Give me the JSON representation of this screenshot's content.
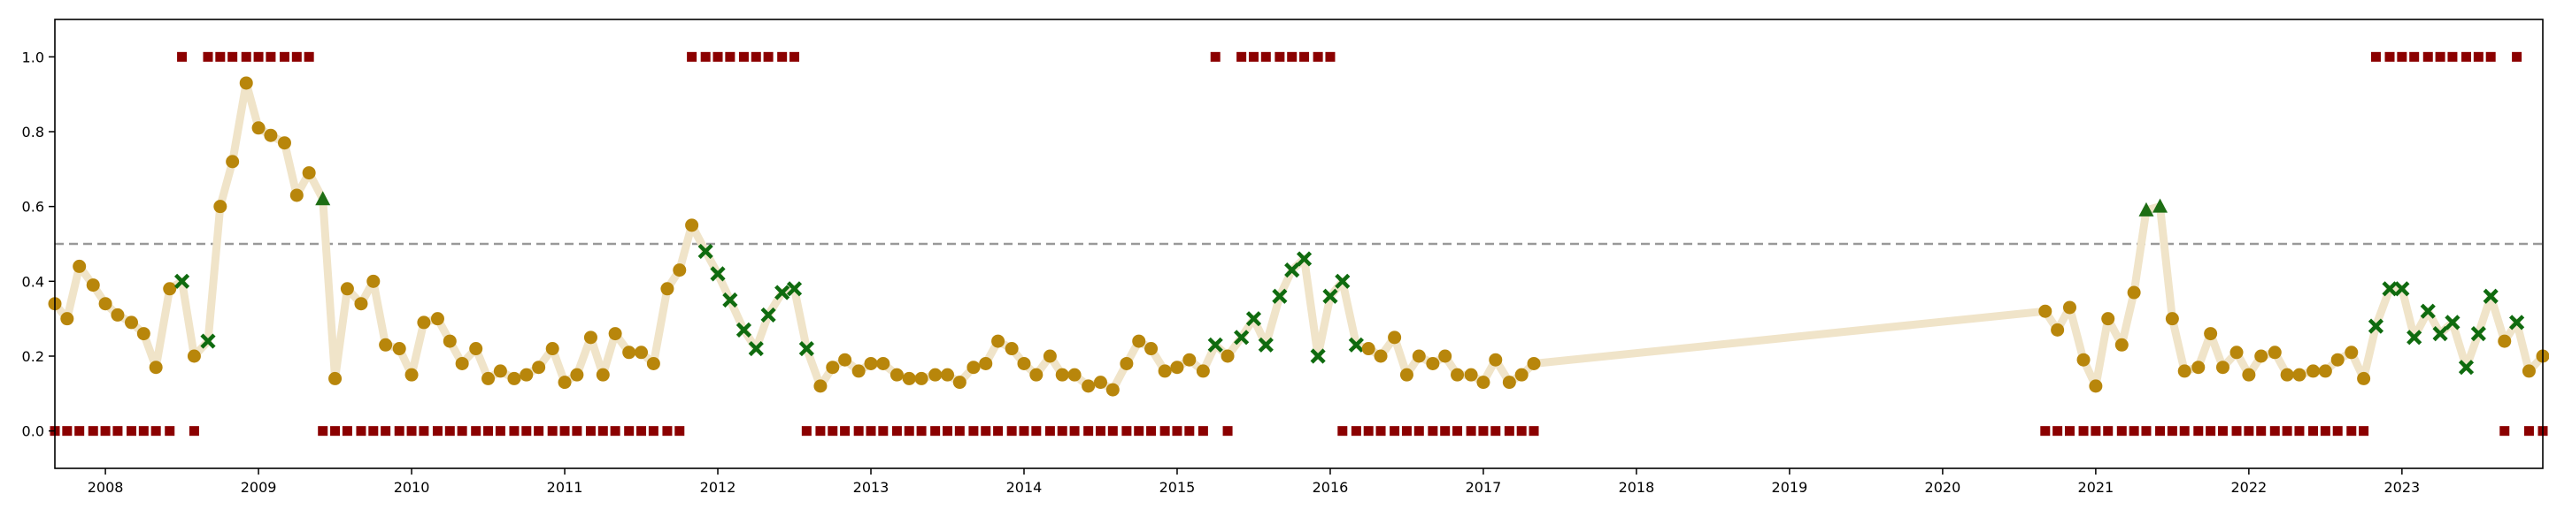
{
  "chart_data": {
    "type": "line",
    "title": "",
    "xlabel": "",
    "ylabel": "",
    "xlim": [
      2007.67,
      2023.92
    ],
    "ylim": [
      -0.1,
      1.1
    ],
    "grid": false,
    "x_ticks": [
      2008,
      2009,
      2010,
      2011,
      2012,
      2013,
      2014,
      2015,
      2016,
      2017,
      2018,
      2019,
      2020,
      2021,
      2022,
      2023
    ],
    "x_tick_labels": [
      "2008",
      "2009",
      "2010",
      "2011",
      "2012",
      "2013",
      "2014",
      "2015",
      "2016",
      "2017",
      "2018",
      "2019",
      "2020",
      "2021",
      "2022",
      "2023"
    ],
    "y_ticks": [
      0.0,
      0.2,
      0.4,
      0.6,
      0.8,
      1.0
    ],
    "y_tick_labels": [
      "0.0",
      "0.2",
      "0.4",
      "0.6",
      "0.8",
      "1.0"
    ],
    "threshold": 0.5,
    "colors": {
      "line": "#f0e4c9",
      "probability_marker": "#b8860b",
      "x_marker": "#0f6b0f",
      "triangle_marker": "#1e6e14",
      "state_marker": "#8b0000",
      "threshold": "#999999"
    },
    "series": [
      {
        "x": [
          2007.67,
          2007.75,
          2007.83,
          2007.92,
          2008.0,
          2008.08,
          2008.17,
          2008.25,
          2008.33,
          2008.42,
          2008.5,
          2008.58,
          2008.67,
          2008.75,
          2008.83,
          2008.92,
          2009.0,
          2009.08,
          2009.17,
          2009.25,
          2009.33,
          2009.42,
          2009.5,
          2009.58,
          2009.67,
          2009.75,
          2009.83,
          2009.92,
          2010.0,
          2010.08,
          2010.17,
          2010.25,
          2010.33,
          2010.42,
          2010.5,
          2010.58,
          2010.67,
          2010.75,
          2010.83,
          2010.92,
          2011.0,
          2011.08,
          2011.17,
          2011.25,
          2011.33,
          2011.42,
          2011.5,
          2011.58,
          2011.67,
          2011.75,
          2011.83,
          2011.92,
          2012.0,
          2012.08,
          2012.17,
          2012.25,
          2012.33,
          2012.42,
          2012.5,
          2012.58,
          2012.67,
          2012.75,
          2012.83,
          2012.92,
          2013.0,
          2013.08,
          2013.17,
          2013.25,
          2013.33,
          2013.42,
          2013.5,
          2013.58,
          2013.67,
          2013.75,
          2013.83,
          2013.92,
          2014.0,
          2014.08,
          2014.17,
          2014.25,
          2014.33,
          2014.42,
          2014.5,
          2014.58,
          2014.67,
          2014.75,
          2014.83,
          2014.92,
          2015.0,
          2015.08,
          2015.17,
          2015.25,
          2015.33,
          2015.42,
          2015.5,
          2015.58,
          2015.67,
          2015.75,
          2015.83,
          2015.92,
          2016.0,
          2016.08,
          2016.17,
          2016.25,
          2016.33,
          2016.42,
          2016.5,
          2016.58,
          2016.67,
          2016.75,
          2016.83,
          2016.92,
          2017.0,
          2017.08,
          2017.17,
          2017.25,
          2017.33,
          2020.67,
          2020.75,
          2020.83,
          2020.92,
          2021.0,
          2021.08,
          2021.17,
          2021.25,
          2021.33,
          2021.42,
          2021.5,
          2021.58,
          2021.67,
          2021.75,
          2021.83,
          2021.92,
          2022.0,
          2022.08,
          2022.17,
          2022.25,
          2022.33,
          2022.42,
          2022.5,
          2022.58,
          2022.67,
          2022.75,
          2022.83,
          2022.92,
          2023.0,
          2023.08,
          2023.17,
          2023.25,
          2023.33,
          2023.42,
          2023.5,
          2023.58,
          2023.67,
          2023.75,
          2023.83,
          2023.92
        ],
        "y": [
          0.34,
          0.3,
          0.44,
          0.39,
          0.34,
          0.31,
          0.29,
          0.26,
          0.17,
          0.38,
          0.4,
          0.2,
          0.24,
          0.6,
          0.72,
          0.93,
          0.81,
          0.79,
          0.77,
          0.63,
          0.69,
          0.62,
          0.14,
          0.38,
          0.34,
          0.4,
          0.23,
          0.22,
          0.15,
          0.29,
          0.3,
          0.24,
          0.18,
          0.22,
          0.14,
          0.16,
          0.14,
          0.15,
          0.17,
          0.22,
          0.13,
          0.15,
          0.25,
          0.15,
          0.26,
          0.21,
          0.21,
          0.18,
          0.38,
          0.43,
          0.55,
          0.48,
          0.42,
          0.35,
          0.27,
          0.22,
          0.31,
          0.37,
          0.38,
          0.22,
          0.12,
          0.17,
          0.19,
          0.16,
          0.18,
          0.18,
          0.15,
          0.14,
          0.14,
          0.15,
          0.15,
          0.13,
          0.17,
          0.18,
          0.24,
          0.22,
          0.18,
          0.15,
          0.2,
          0.15,
          0.15,
          0.12,
          0.13,
          0.11,
          0.18,
          0.24,
          0.22,
          0.16,
          0.17,
          0.19,
          0.16,
          0.23,
          0.2,
          0.25,
          0.3,
          0.23,
          0.36,
          0.43,
          0.46,
          0.2,
          0.36,
          0.4,
          0.23,
          0.22,
          0.2,
          0.25,
          0.15,
          0.2,
          0.18,
          0.2,
          0.15,
          0.15,
          0.13,
          0.19,
          0.13,
          0.15,
          0.18,
          0.32,
          0.27,
          0.33,
          0.19,
          0.12,
          0.3,
          0.23,
          0.37,
          0.59,
          0.6,
          0.3,
          0.16,
          0.17,
          0.26,
          0.17,
          0.21,
          0.15,
          0.2,
          0.21,
          0.15,
          0.15,
          0.16,
          0.16,
          0.19,
          0.21,
          0.14,
          0.28,
          0.38,
          0.38,
          0.25,
          0.32,
          0.26,
          0.29,
          0.17,
          0.26,
          0.36,
          0.24,
          0.29,
          0.16,
          0.2
        ],
        "markers": [
          "o",
          "o",
          "o",
          "o",
          "o",
          "o",
          "o",
          "o",
          "o",
          "o",
          "x",
          "o",
          "x",
          "o",
          "o",
          "o",
          "o",
          "o",
          "o",
          "o",
          "o",
          "^",
          "o",
          "o",
          "o",
          "o",
          "o",
          "o",
          "o",
          "o",
          "o",
          "o",
          "o",
          "o",
          "o",
          "o",
          "o",
          "o",
          "o",
          "o",
          "o",
          "o",
          "o",
          "o",
          "o",
          "o",
          "o",
          "o",
          "o",
          "o",
          "o",
          "x",
          "x",
          "x",
          "x",
          "x",
          "x",
          "x",
          "x",
          "x",
          "o",
          "o",
          "o",
          "o",
          "o",
          "o",
          "o",
          "o",
          "o",
          "o",
          "o",
          "o",
          "o",
          "o",
          "o",
          "o",
          "o",
          "o",
          "o",
          "o",
          "o",
          "o",
          "o",
          "o",
          "o",
          "o",
          "o",
          "o",
          "o",
          "o",
          "o",
          "x",
          "o",
          "x",
          "x",
          "x",
          "x",
          "x",
          "x",
          "x",
          "x",
          "x",
          "x",
          "o",
          "o",
          "o",
          "o",
          "o",
          "o",
          "o",
          "o",
          "o",
          "o",
          "o",
          "o",
          "o",
          "o",
          "o",
          "o",
          "o",
          "o",
          "o",
          "o",
          "o",
          "o",
          "^",
          "^",
          "o",
          "o",
          "o",
          "o",
          "o",
          "o",
          "o",
          "o",
          "o",
          "o",
          "o",
          "o",
          "o",
          "o",
          "o",
          "o",
          "x",
          "x",
          "x",
          "x",
          "x",
          "x",
          "x",
          "x",
          "x",
          "x",
          "o",
          "x",
          "o",
          "o"
        ],
        "state": [
          0,
          0,
          0,
          0,
          0,
          0,
          0,
          0,
          0,
          0,
          1,
          0,
          1,
          1,
          1,
          1,
          1,
          1,
          1,
          1,
          1,
          0,
          0,
          0,
          0,
          0,
          0,
          0,
          0,
          0,
          0,
          0,
          0,
          0,
          0,
          0,
          0,
          0,
          0,
          0,
          0,
          0,
          0,
          0,
          0,
          0,
          0,
          0,
          0,
          0,
          1,
          1,
          1,
          1,
          1,
          1,
          1,
          1,
          1,
          0,
          0,
          0,
          0,
          0,
          0,
          0,
          0,
          0,
          0,
          0,
          0,
          0,
          0,
          0,
          0,
          0,
          0,
          0,
          0,
          0,
          0,
          0,
          0,
          0,
          0,
          0,
          0,
          0,
          0,
          0,
          0,
          1,
          0,
          1,
          1,
          1,
          1,
          1,
          1,
          1,
          1,
          0,
          0,
          0,
          0,
          0,
          0,
          0,
          0,
          0,
          0,
          0,
          0,
          0,
          0,
          0,
          0,
          0,
          0,
          0,
          0,
          0,
          0,
          0,
          0,
          0,
          0,
          0,
          0,
          0,
          0,
          0,
          0,
          0,
          0,
          0,
          0,
          0,
          0,
          0,
          0,
          0,
          0,
          1,
          1,
          1,
          1,
          1,
          1,
          1,
          1,
          1,
          1,
          0,
          1,
          0,
          0
        ]
      }
    ]
  }
}
